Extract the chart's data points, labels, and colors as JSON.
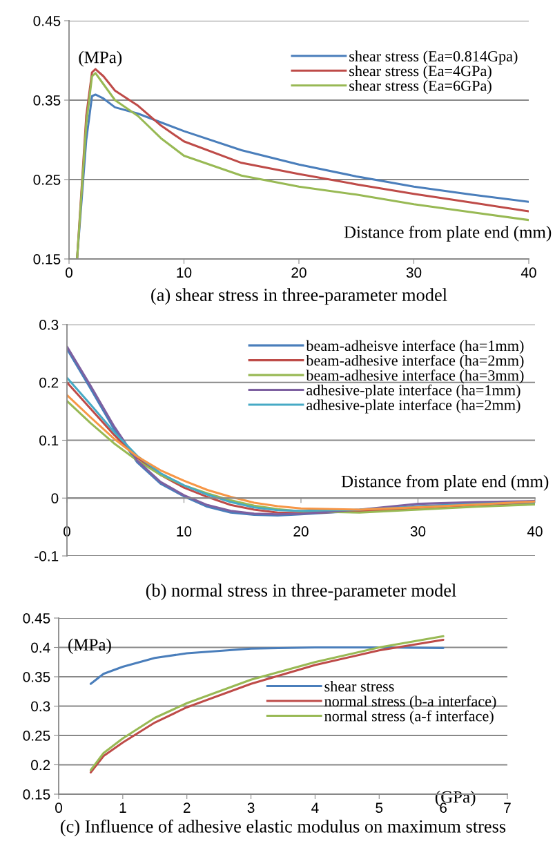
{
  "chart_data": [
    {
      "type": "line",
      "title": "(a) shear stress in three-parameter model",
      "xlabel": "Distance from plate end (mm)",
      "ylabel": "(MPa)",
      "xlim": [
        0,
        40
      ],
      "xticks": [
        0,
        10,
        20,
        30,
        40
      ],
      "ylim": [
        0.15,
        0.45
      ],
      "yticks": [
        0.15,
        0.25,
        0.35,
        0.45
      ],
      "grid": "y",
      "legend": "top right",
      "series": [
        {
          "name": "shear stress (Ea=0.814Gpa)",
          "color": "#4a7ebb",
          "x": [
            0.7,
            1.5,
            2,
            2.3,
            3,
            4,
            6,
            8,
            10,
            15,
            20,
            25,
            30,
            35,
            40
          ],
          "values": [
            0.15,
            0.3,
            0.355,
            0.357,
            0.352,
            0.341,
            0.333,
            0.322,
            0.311,
            0.287,
            0.269,
            0.254,
            0.241,
            0.231,
            0.222
          ]
        },
        {
          "name": "shear stress (Ea=4GPa)",
          "color": "#be4b48",
          "x": [
            0.7,
            1.5,
            2,
            2.3,
            3,
            4,
            6,
            8,
            10,
            15,
            20,
            25,
            30,
            35,
            40
          ],
          "values": [
            0.15,
            0.33,
            0.385,
            0.389,
            0.38,
            0.362,
            0.343,
            0.318,
            0.298,
            0.271,
            0.257,
            0.244,
            0.232,
            0.221,
            0.21
          ]
        },
        {
          "name": "shear stress (Ea=6GPa)",
          "color": "#98b954",
          "x": [
            0.7,
            1.5,
            2,
            2.3,
            3,
            4,
            6,
            8,
            10,
            15,
            20,
            25,
            30,
            35,
            40
          ],
          "values": [
            0.15,
            0.32,
            0.38,
            0.384,
            0.37,
            0.35,
            0.33,
            0.302,
            0.28,
            0.255,
            0.241,
            0.231,
            0.219,
            0.209,
            0.199
          ]
        }
      ]
    },
    {
      "type": "line",
      "title": "(b) normal stress in three-parameter model",
      "xlabel": "Distance from plate end (mm)",
      "xlim": [
        0,
        40
      ],
      "xticks": [
        0,
        10,
        20,
        30,
        40
      ],
      "ylim": [
        -0.1,
        0.3
      ],
      "yticks": [
        -0.1,
        0,
        0.1,
        0.2,
        0.3
      ],
      "grid": "y",
      "legend": "top right",
      "x": [
        0,
        2,
        4,
        6,
        8,
        10,
        12,
        14,
        16,
        18,
        20,
        25,
        30,
        35,
        40
      ],
      "series": [
        {
          "name": "beam-adheisve interface (ha=1mm)",
          "color": "#4a7ebb",
          "values": [
            0.258,
            0.19,
            0.12,
            0.062,
            0.025,
            0.003,
            -0.015,
            -0.025,
            -0.029,
            -0.03,
            -0.028,
            -0.022,
            -0.014,
            -0.01,
            -0.007
          ]
        },
        {
          "name": "beam-adhesive interface (ha=2mm)",
          "color": "#be4b48",
          "values": [
            0.2,
            0.155,
            0.11,
            0.07,
            0.04,
            0.018,
            0.002,
            -0.012,
            -0.02,
            -0.025,
            -0.026,
            -0.023,
            -0.017,
            -0.012,
            -0.008
          ]
        },
        {
          "name": "beam-adhesive interface (ha=3mm)",
          "color": "#98b954",
          "values": [
            0.168,
            0.13,
            0.095,
            0.065,
            0.04,
            0.022,
            0.008,
            -0.004,
            -0.013,
            -0.019,
            -0.023,
            -0.025,
            -0.02,
            -0.015,
            -0.011
          ]
        },
        {
          "name": "adhesive-plate interface (ha=1mm)",
          "color": "#7d60a0",
          "values": [
            0.262,
            0.195,
            0.125,
            0.065,
            0.028,
            0.005,
            -0.012,
            -0.022,
            -0.027,
            -0.028,
            -0.027,
            -0.02,
            -0.01,
            -0.007,
            -0.005
          ]
        },
        {
          "name": "adhesive-plate interface (ha=2mm)",
          "color": "#46aac5",
          "values": [
            0.208,
            0.162,
            0.115,
            0.073,
            0.043,
            0.022,
            0.006,
            -0.007,
            -0.016,
            -0.021,
            -0.022,
            -0.02,
            -0.015,
            -0.01,
            -0.007
          ]
        },
        {
          "color": "#f79646",
          "values": [
            0.178,
            0.14,
            0.103,
            0.072,
            0.048,
            0.03,
            0.014,
            0.002,
            -0.008,
            -0.014,
            -0.018,
            -0.02,
            -0.016,
            -0.011,
            -0.006
          ]
        }
      ]
    },
    {
      "type": "line",
      "title": "(c) Influence of adhesive elastic modulus on maximum stress",
      "xlabel": "(GPa)",
      "ylabel": "(MPa)",
      "xlim": [
        0,
        7
      ],
      "xticks": [
        0,
        1,
        2,
        3,
        4,
        5,
        6,
        7
      ],
      "ylim": [
        0.15,
        0.45
      ],
      "yticks": [
        0.15,
        0.2,
        0.25,
        0.3,
        0.35,
        0.4,
        0.45
      ],
      "grid": "y",
      "legend": "right",
      "x": [
        0.5,
        0.7,
        1,
        1.5,
        2,
        3,
        4,
        5,
        6
      ],
      "series": [
        {
          "name": "shear stress",
          "color": "#4a7ebb",
          "values": [
            0.338,
            0.355,
            0.367,
            0.382,
            0.39,
            0.398,
            0.4,
            0.4,
            0.399
          ]
        },
        {
          "name": "normal stress (b-a interface)",
          "color": "#be4b48",
          "values": [
            0.187,
            0.215,
            0.238,
            0.272,
            0.298,
            0.338,
            0.37,
            0.395,
            0.413
          ]
        },
        {
          "name": "normal stress (a-f interface)",
          "color": "#98b954",
          "values": [
            0.191,
            0.22,
            0.245,
            0.28,
            0.305,
            0.345,
            0.375,
            0.4,
            0.419
          ]
        }
      ]
    }
  ]
}
